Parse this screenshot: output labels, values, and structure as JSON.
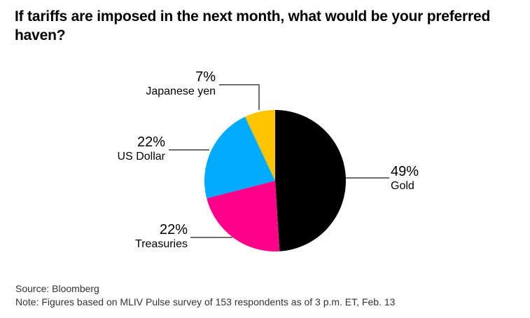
{
  "title": "If tariffs are imposed in the next month, what would be your preferred haven?",
  "labels": {
    "gold": {
      "pct": "49%",
      "name": "Gold"
    },
    "treasuries": {
      "pct": "22%",
      "name": "Treasuries"
    },
    "us_dollar": {
      "pct": "22%",
      "name": "US Dollar"
    },
    "japanese_yen": {
      "pct": "7%",
      "name": "Japanese yen"
    }
  },
  "footer": {
    "source": "Source: Bloomberg",
    "note": "Note: Figures based on MLIV Pulse survey of 153 respondents as of 3 p.m. ET, Feb. 13"
  },
  "colors": {
    "gold_slice": "#000000",
    "treasuries_slice": "#ff0088",
    "us_dollar_slice": "#00aaff",
    "japanese_yen_slice": "#ffc400",
    "leader_line": "#6f6f6f",
    "text": "#000000",
    "background": "#ffffff"
  },
  "chart_data": {
    "type": "pie",
    "title": "If tariffs are imposed in the next month, what would be your preferred haven?",
    "categories": [
      "Gold",
      "Treasuries",
      "US Dollar",
      "Japanese yen"
    ],
    "values": [
      49,
      22,
      22,
      7
    ],
    "unit": "%",
    "colors": [
      "#000000",
      "#ff0088",
      "#00aaff",
      "#ffc400"
    ],
    "start_angle_deg": 0,
    "direction": "clockwise",
    "legend_position": "outside-callouts",
    "source_note": "Source: Bloomberg",
    "footnote": "Note: Figures based on MLIV Pulse survey of 153 respondents as of 3 p.m. ET, Feb. 13"
  }
}
